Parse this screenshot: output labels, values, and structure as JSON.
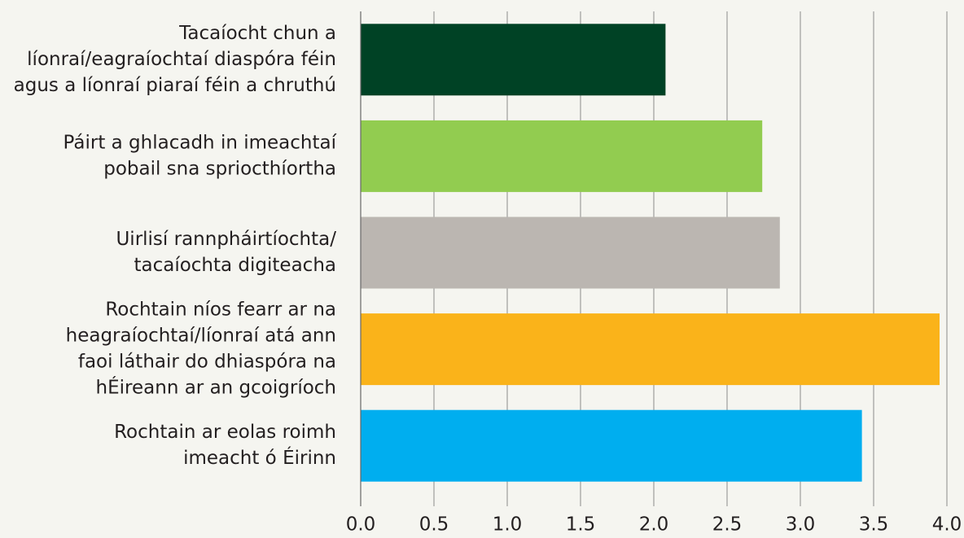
{
  "chart_data": {
    "type": "barh",
    "categories": [
      [
        "Tacaíocht chun a",
        "líonraí/eagraíochtaí diaspóra féin",
        "agus a líonraí piaraí féin a chruthú"
      ],
      [
        "Páirt a ghlacadh in imeachtaí",
        "pobail sna spriocthíortha"
      ],
      [
        "Uirlisí rannpháirtíochta/",
        "tacaíochta digiteacha"
      ],
      [
        "Rochtain níos fearr ar na",
        "heagraíochtaí/líonraí atá ann",
        "faoi láthair do dhiaspóra na",
        "hÉireann ar an gcoigríoch"
      ],
      [
        "Rochtain ar eolas roimh",
        "imeacht ó Éirinn"
      ]
    ],
    "values": [
      2.08,
      2.74,
      2.86,
      3.95,
      3.42
    ],
    "colors": [
      "#004225",
      "#92cc50",
      "#bbb6b1",
      "#fab31a",
      "#00aeef"
    ],
    "xlim": [
      0,
      4
    ],
    "xticks": [
      {
        "value": 0,
        "label": "0.0"
      },
      0.5,
      {
        "value": 1,
        "label": "1.0"
      },
      1.5,
      {
        "value": 2,
        "label": "2.0"
      },
      2.5,
      {
        "value": 3,
        "label": "3.0"
      },
      3.5,
      {
        "value": 4,
        "label": "4.0"
      }
    ],
    "grid": true
  }
}
